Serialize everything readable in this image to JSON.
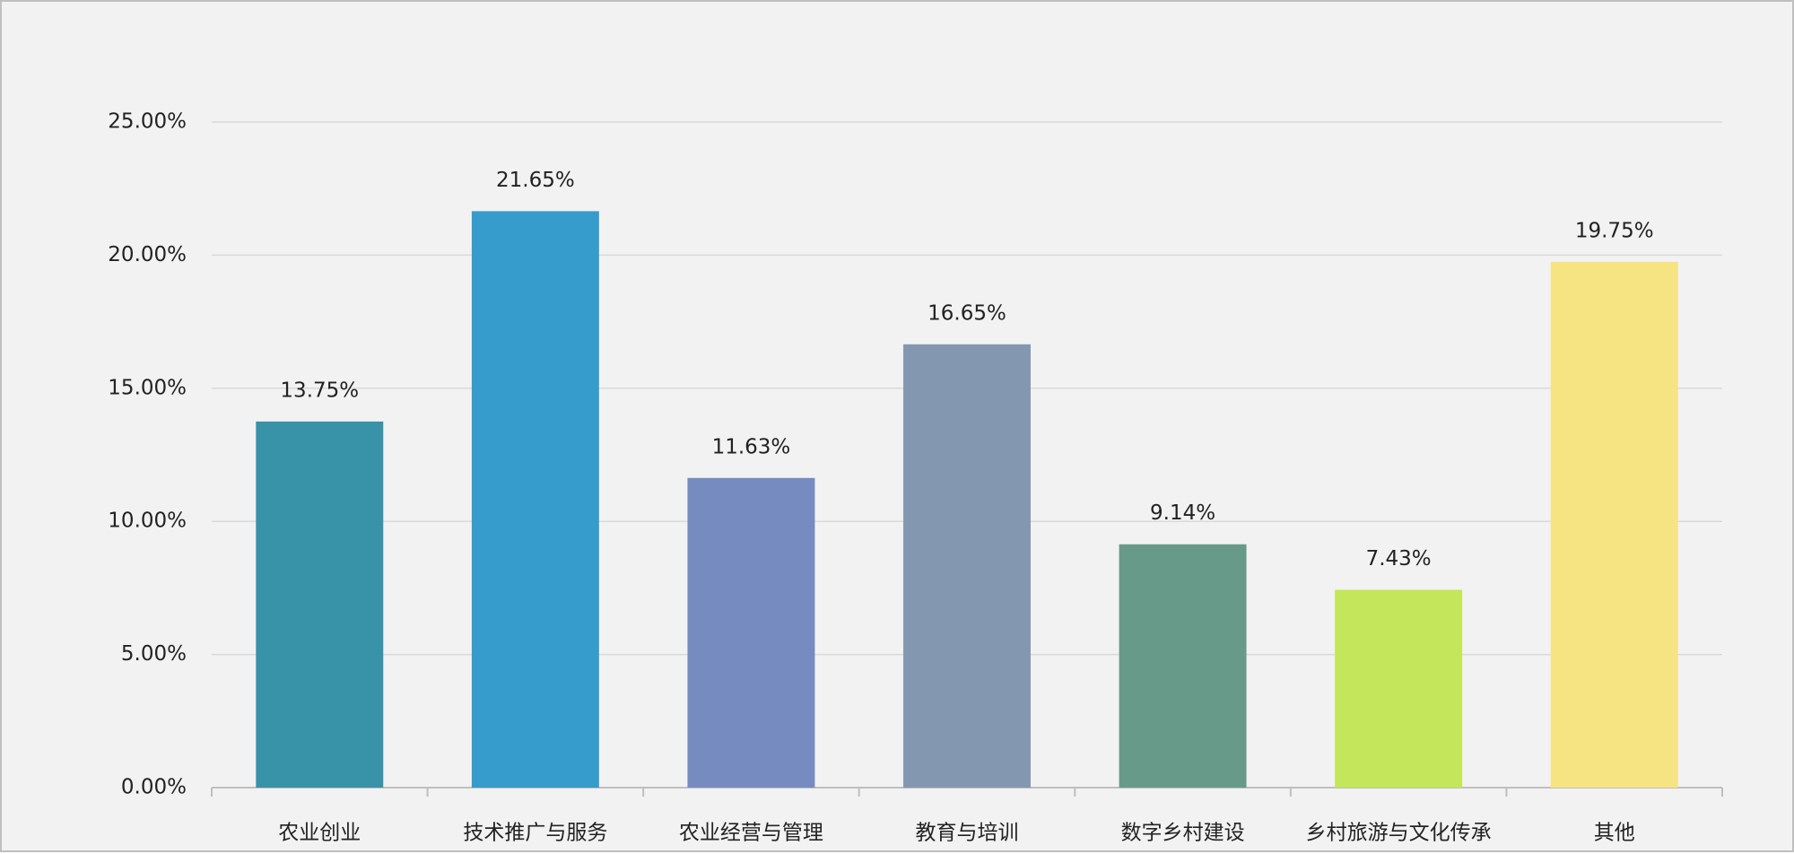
{
  "chart_data": {
    "type": "bar",
    "categories": [
      "农业创业",
      "技术推广与服务",
      "农业经营与管理",
      "教育与培训",
      "数字乡村建设",
      "乡村旅游与文化传承",
      "其他"
    ],
    "values": [
      13.75,
      21.65,
      11.63,
      16.65,
      9.14,
      7.43,
      19.75
    ],
    "value_labels": [
      "13.75%",
      "21.65%",
      "11.63%",
      "16.65%",
      "9.14%",
      "7.43%",
      "19.75%"
    ],
    "colors": [
      "#3892a8",
      "#359ccb",
      "#768bbf",
      "#8397b0",
      "#679a88",
      "#c4e65a",
      "#f6e482"
    ],
    "ylim": [
      0,
      25
    ],
    "yticks": [
      {
        "value": 0,
        "label": "0.00%"
      },
      {
        "value": 5,
        "label": "5.00%"
      },
      {
        "value": 10,
        "label": "10.00%"
      },
      {
        "value": 15,
        "label": "15.00%"
      },
      {
        "value": 20,
        "label": "20.00%"
      },
      {
        "value": 25,
        "label": "25.00%"
      }
    ],
    "grid": true
  }
}
